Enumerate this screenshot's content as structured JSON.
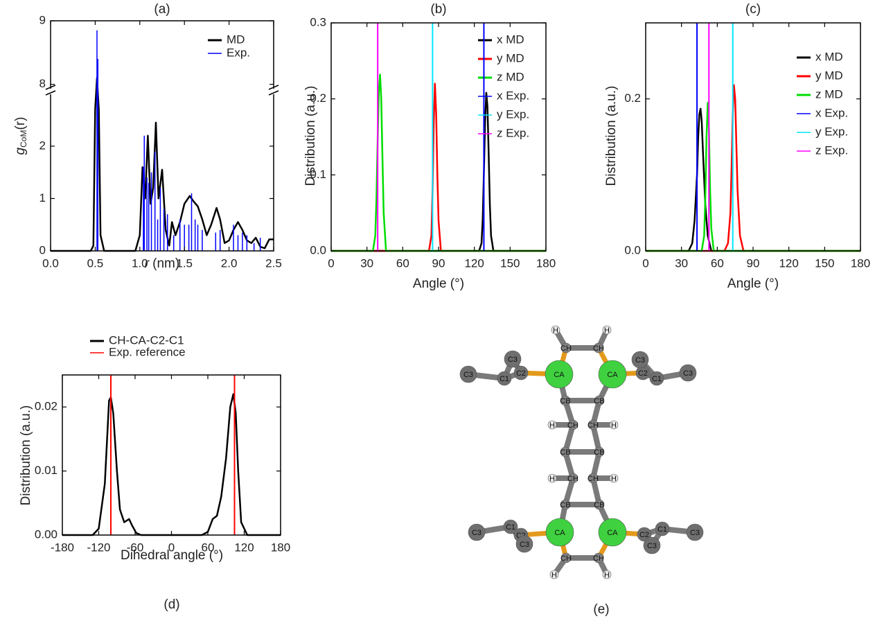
{
  "chart_data": [
    {
      "type": "line",
      "title": "(a)",
      "x_label": {
        "symbol": "r",
        "unit": "(nm)"
      },
      "y_label": {
        "symbol": "g",
        "subscript": "CoM",
        "argument": "(r)"
      },
      "xlim": [
        0,
        2.5
      ],
      "xticks": [
        {
          "value": 0,
          "label": "0.0"
        },
        0.5,
        {
          "value": 1,
          "label": "1.0"
        },
        1.5,
        {
          "value": 2,
          "label": "2.0"
        },
        2.5
      ],
      "ylim": [
        0,
        9
      ],
      "yticks": [
        0,
        1,
        2,
        8,
        9
      ],
      "axis_break": [
        2.7,
        7.8
      ],
      "legend": "upper right",
      "series": [
        {
          "name": "MD",
          "color": "#000000",
          "x": [
            0,
            0.45,
            0.48,
            0.5,
            0.52,
            0.54,
            0.56,
            0.6,
            0.95,
            1.0,
            1.03,
            1.06,
            1.09,
            1.12,
            1.15,
            1.18,
            1.21,
            1.25,
            1.29,
            1.33,
            1.36,
            1.4,
            1.45,
            1.5,
            1.56,
            1.6,
            1.65,
            1.7,
            1.75,
            1.8,
            1.86,
            1.9,
            1.95,
            2.0,
            2.05,
            2.1,
            2.15,
            2.2,
            2.25,
            2.3,
            2.35,
            2.4,
            2.45,
            2.5
          ],
          "values": [
            0,
            0,
            0.1,
            3,
            8.1,
            3,
            0.3,
            0,
            0,
            0.3,
            1.6,
            1.0,
            2.2,
            0.9,
            1.2,
            2.45,
            1.0,
            1.55,
            0.4,
            0.1,
            0.55,
            0.3,
            0.55,
            0.9,
            1.05,
            0.95,
            0.85,
            0.6,
            0.3,
            0.5,
            0.82,
            0.6,
            0.15,
            0.2,
            0.4,
            0.55,
            0.4,
            0.2,
            0.15,
            0.25,
            0.08,
            0.05,
            0.22,
            0.22
          ]
        },
        {
          "name": "Exp.",
          "color": "#0000ff",
          "style": "sticks",
          "x": [
            0.52,
            0.53,
            1.04,
            1.05,
            1.08,
            1.1,
            1.13,
            1.17,
            1.2,
            1.23,
            1.27,
            1.31,
            1.38,
            1.45,
            1.5,
            1.55,
            1.58,
            1.62,
            1.65,
            1.7,
            1.85,
            1.9,
            2.05,
            2.1,
            2.15,
            2.2,
            2.28,
            2.35
          ],
          "values": [
            8.85,
            8.4,
            1.6,
            2.2,
            1.4,
            1.3,
            1.5,
            1.9,
            0.6,
            1.2,
            0.8,
            0.7,
            0.3,
            0.6,
            0.5,
            0.5,
            1.1,
            0.6,
            0.5,
            0.4,
            0.35,
            0.4,
            0.5,
            0.3,
            0.35,
            0.3,
            0.15,
            0.25
          ]
        }
      ]
    },
    {
      "type": "line",
      "title": "(b)",
      "x_label": "Angle (°)",
      "y_label": "Distribution (a.u.)",
      "xlim": [
        0,
        180
      ],
      "xticks": [
        0,
        30,
        60,
        90,
        120,
        150,
        180
      ],
      "ylim": [
        0,
        0.3
      ],
      "yticks": [
        {
          "value": 0,
          "label": "0.0"
        },
        0.1,
        0.2,
        0.3
      ],
      "legend": "upper right",
      "series": [
        {
          "name": "x MD",
          "color": "#000000",
          "x": [
            0,
            124,
            126,
            127,
            128,
            129,
            130,
            131,
            132,
            133,
            134,
            136,
            180
          ],
          "values": [
            0,
            0,
            0.01,
            0.04,
            0.1,
            0.17,
            0.208,
            0.19,
            0.13,
            0.06,
            0.02,
            0,
            0
          ]
        },
        {
          "name": "y MD",
          "color": "#ff0000",
          "x": [
            0,
            82,
            84,
            85,
            86,
            87,
            88,
            89,
            90,
            92,
            180
          ],
          "values": [
            0,
            0,
            0.02,
            0.08,
            0.17,
            0.22,
            0.18,
            0.1,
            0.04,
            0,
            0
          ]
        },
        {
          "name": "z MD",
          "color": "#00dd00",
          "x": [
            0,
            35,
            37,
            38,
            39,
            40,
            41,
            42,
            43,
            44,
            46,
            180
          ],
          "values": [
            0,
            0,
            0.02,
            0.07,
            0.15,
            0.21,
            0.232,
            0.2,
            0.12,
            0.05,
            0,
            0
          ]
        },
        {
          "name": "x Exp.",
          "color": "#0000ff",
          "x": [
            128
          ]
        },
        {
          "name": "y Exp.",
          "color": "#00e5ff",
          "x": [
            85
          ]
        },
        {
          "name": "z Exp.",
          "color": "#ff00ff",
          "x": [
            39
          ]
        }
      ]
    },
    {
      "type": "line",
      "title": "(c)",
      "x_label": "Angle (°)",
      "y_label": "Distribution (a.u.)",
      "xlim": [
        0,
        180
      ],
      "xticks": [
        0,
        30,
        60,
        90,
        120,
        150,
        180
      ],
      "ylim": [
        0,
        0.3
      ],
      "yticks": [
        {
          "value": 0,
          "label": "0.0"
        },
        0.2
      ],
      "legend": "upper right",
      "series": [
        {
          "name": "x MD",
          "color": "#000000",
          "x": [
            0,
            36,
            39,
            41,
            43,
            44,
            45,
            46,
            47,
            48,
            50,
            52,
            55,
            180
          ],
          "values": [
            0,
            0,
            0.01,
            0.04,
            0.1,
            0.15,
            0.18,
            0.187,
            0.17,
            0.13,
            0.06,
            0.02,
            0,
            0
          ]
        },
        {
          "name": "y MD",
          "color": "#ff0000",
          "x": [
            0,
            66,
            69,
            71,
            72,
            73,
            74,
            75,
            76,
            77,
            79,
            82,
            180
          ],
          "values": [
            0,
            0,
            0.01,
            0.05,
            0.11,
            0.18,
            0.218,
            0.2,
            0.14,
            0.08,
            0.02,
            0,
            0
          ]
        },
        {
          "name": "z MD",
          "color": "#00dd00",
          "x": [
            0,
            47,
            49,
            50,
            51,
            52,
            53,
            54,
            55,
            57,
            180
          ],
          "values": [
            0,
            0,
            0.02,
            0.07,
            0.15,
            0.195,
            0.16,
            0.08,
            0.03,
            0,
            0
          ]
        },
        {
          "name": "x Exp.",
          "color": "#0000ff",
          "x": [
            43
          ]
        },
        {
          "name": "y Exp.",
          "color": "#00e5ff",
          "x": [
            73
          ]
        },
        {
          "name": "z Exp.",
          "color": "#ff00ff",
          "x": [
            53
          ]
        }
      ]
    },
    {
      "type": "line",
      "title": "(d)",
      "x_label": "Dihedral angle (°)",
      "y_label": "Distribution (a.u.)",
      "xlim": [
        -180,
        180
      ],
      "xticks": [
        -180,
        -120,
        -60,
        0,
        60,
        120,
        180
      ],
      "ylim": [
        0,
        0.025
      ],
      "yticks": [
        {
          "value": 0,
          "label": "0.00"
        },
        0.01,
        0.02
      ],
      "legend": "above",
      "series": [
        {
          "name": "CH-CA-C2-C1",
          "color": "#000000",
          "x": [
            -180,
            -130,
            -120,
            -110,
            -103,
            -100,
            -96,
            -90,
            -85,
            -78,
            -70,
            -65,
            -58,
            -50,
            50,
            60,
            68,
            75,
            82,
            90,
            97,
            102,
            106,
            110,
            115,
            125,
            180
          ],
          "values": [
            0,
            0,
            0.001,
            0.008,
            0.021,
            0.0215,
            0.019,
            0.01,
            0.004,
            0.002,
            0.0025,
            0.0015,
            0.0003,
            0,
            0,
            0.0005,
            0.0025,
            0.003,
            0.006,
            0.012,
            0.02,
            0.022,
            0.019,
            0.01,
            0.002,
            0,
            0
          ]
        },
        {
          "name": "Exp. reference",
          "color": "#ff0000",
          "x": [
            -100,
            104
          ]
        }
      ]
    }
  ],
  "diagram": {
    "title": "(e)",
    "atoms": [
      "H",
      "H",
      "CH",
      "CH",
      "CA",
      "CA",
      "C3",
      "C1",
      "C3",
      "C2",
      "C2",
      "C3",
      "C1",
      "C3",
      "CB",
      "CB",
      "H",
      "CH",
      "CH",
      "H",
      "CB",
      "CB",
      "H",
      "CH",
      "CH",
      "H",
      "CB",
      "CB",
      "CA",
      "CA",
      "C3",
      "C1",
      "C2",
      "C3",
      "C2",
      "C1",
      "C3",
      "C3",
      "CH",
      "CH",
      "H",
      "H"
    ]
  }
}
